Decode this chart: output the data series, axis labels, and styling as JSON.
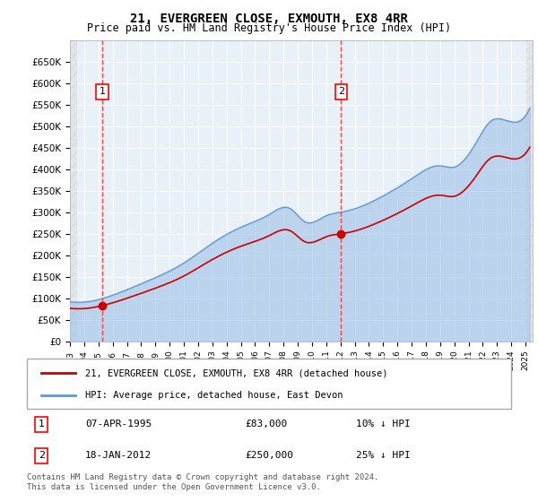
{
  "title": "21, EVERGREEN CLOSE, EXMOUTH, EX8 4RR",
  "subtitle": "Price paid vs. HM Land Registry's House Price Index (HPI)",
  "ylim": [
    0,
    700000
  ],
  "yticks": [
    0,
    50000,
    100000,
    150000,
    200000,
    250000,
    300000,
    350000,
    400000,
    450000,
    500000,
    550000,
    600000,
    650000
  ],
  "xlim_start": 1993.0,
  "xlim_end": 2025.5,
  "hpi_color": "#a8c8e8",
  "hpi_line_color": "#6699cc",
  "price_color": "#cc0000",
  "vline_color": "#ff4444",
  "bg_plot_color": "#e8f0f8",
  "hatch_color": "#cccccc",
  "legend_label_price": "21, EVERGREEN CLOSE, EXMOUTH, EX8 4RR (detached house)",
  "legend_label_hpi": "HPI: Average price, detached house, East Devon",
  "transaction1_date": "07-APR-1995",
  "transaction1_price": "£83,000",
  "transaction1_hpi": "10% ↓ HPI",
  "transaction2_date": "18-JAN-2012",
  "transaction2_price": "£250,000",
  "transaction2_hpi": "25% ↓ HPI",
  "footnote": "Contains HM Land Registry data © Crown copyright and database right 2024.\nThis data is licensed under the Open Government Licence v3.0.",
  "point1_x": 1995.27,
  "point1_y": 83000,
  "point2_x": 2012.05,
  "point2_y": 250000
}
